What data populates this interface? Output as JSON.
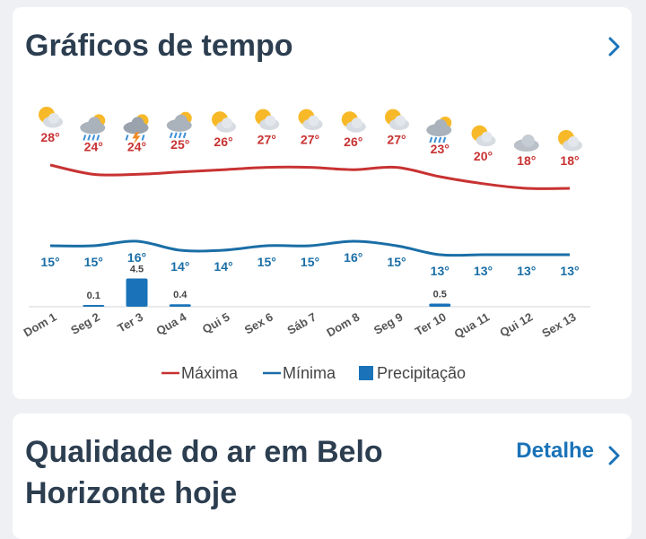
{
  "header": {
    "title": "Gráficos de tempo"
  },
  "air": {
    "title": "Qualidade do ar em Belo Horizonte hoje",
    "detail_label": "Detalhe"
  },
  "colors": {
    "max": "#c83232",
    "min": "#1a6ea6",
    "precip": "#1a73b8",
    "accent": "#1a73b8"
  },
  "chart_data": {
    "type": "line",
    "days": [
      "Dom 1",
      "Seg 2",
      "Ter 3",
      "Qua 4",
      "Qui 5",
      "Sex 6",
      "Sáb 7",
      "Dom 8",
      "Seg 9",
      "Ter 10",
      "Qua 11",
      "Qui 12",
      "Sex 13"
    ],
    "icons": [
      "sun-cloud-icon",
      "rain-icon",
      "storm-icon",
      "rain-icon",
      "sun-cloud-icon",
      "sun-cloud-icon",
      "sun-cloud-icon",
      "sun-cloud-icon",
      "sun-cloud-icon",
      "rain-icon",
      "sun-cloud-icon",
      "cloud-icon",
      "sun-cloud-icon"
    ],
    "series": [
      {
        "name": "Máxima",
        "values": [
          28,
          24,
          24,
          25,
          26,
          27,
          27,
          26,
          27,
          23,
          20,
          18,
          18
        ]
      },
      {
        "name": "Mínima",
        "values": [
          15,
          15,
          16,
          14,
          14,
          15,
          15,
          16,
          15,
          13,
          13,
          13,
          13
        ]
      },
      {
        "name": "Precipitação",
        "values": [
          null,
          0.1,
          4.5,
          0.4,
          null,
          null,
          null,
          null,
          null,
          0.5,
          null,
          null,
          null
        ]
      }
    ],
    "legend": {
      "position": "bottom",
      "entries": [
        "Máxima",
        "Mínima",
        "Precipitação"
      ]
    }
  }
}
